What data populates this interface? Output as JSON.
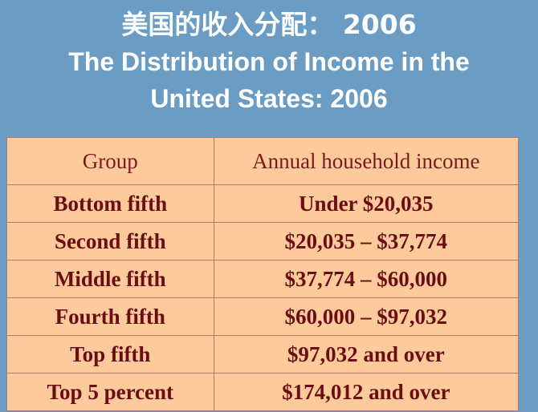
{
  "title": {
    "zh": "美国的收入分配： 2006",
    "en_line1": "The Distribution of Income in the",
    "en_line2": "United States:  2006"
  },
  "table": {
    "headers": [
      "Group",
      "Annual household income"
    ],
    "rows": [
      {
        "group": "Bottom fifth",
        "income": "Under $20,035"
      },
      {
        "group": "Second fifth",
        "income": "$20,035 – $37,774"
      },
      {
        "group": "Middle fifth",
        "income": "$37,774 – $60,000"
      },
      {
        "group": "Fourth fifth",
        "income": "$60,000 – $97,032"
      },
      {
        "group": "Top fifth",
        "income": "$97,032 and over"
      },
      {
        "group": "Top 5 percent",
        "income": "$174,012 and over"
      }
    ]
  },
  "colors": {
    "background": "#6a9cc4",
    "table_fill": "#fdcb9b",
    "table_text": "#6b0d12",
    "title_text": "#ffffff"
  }
}
